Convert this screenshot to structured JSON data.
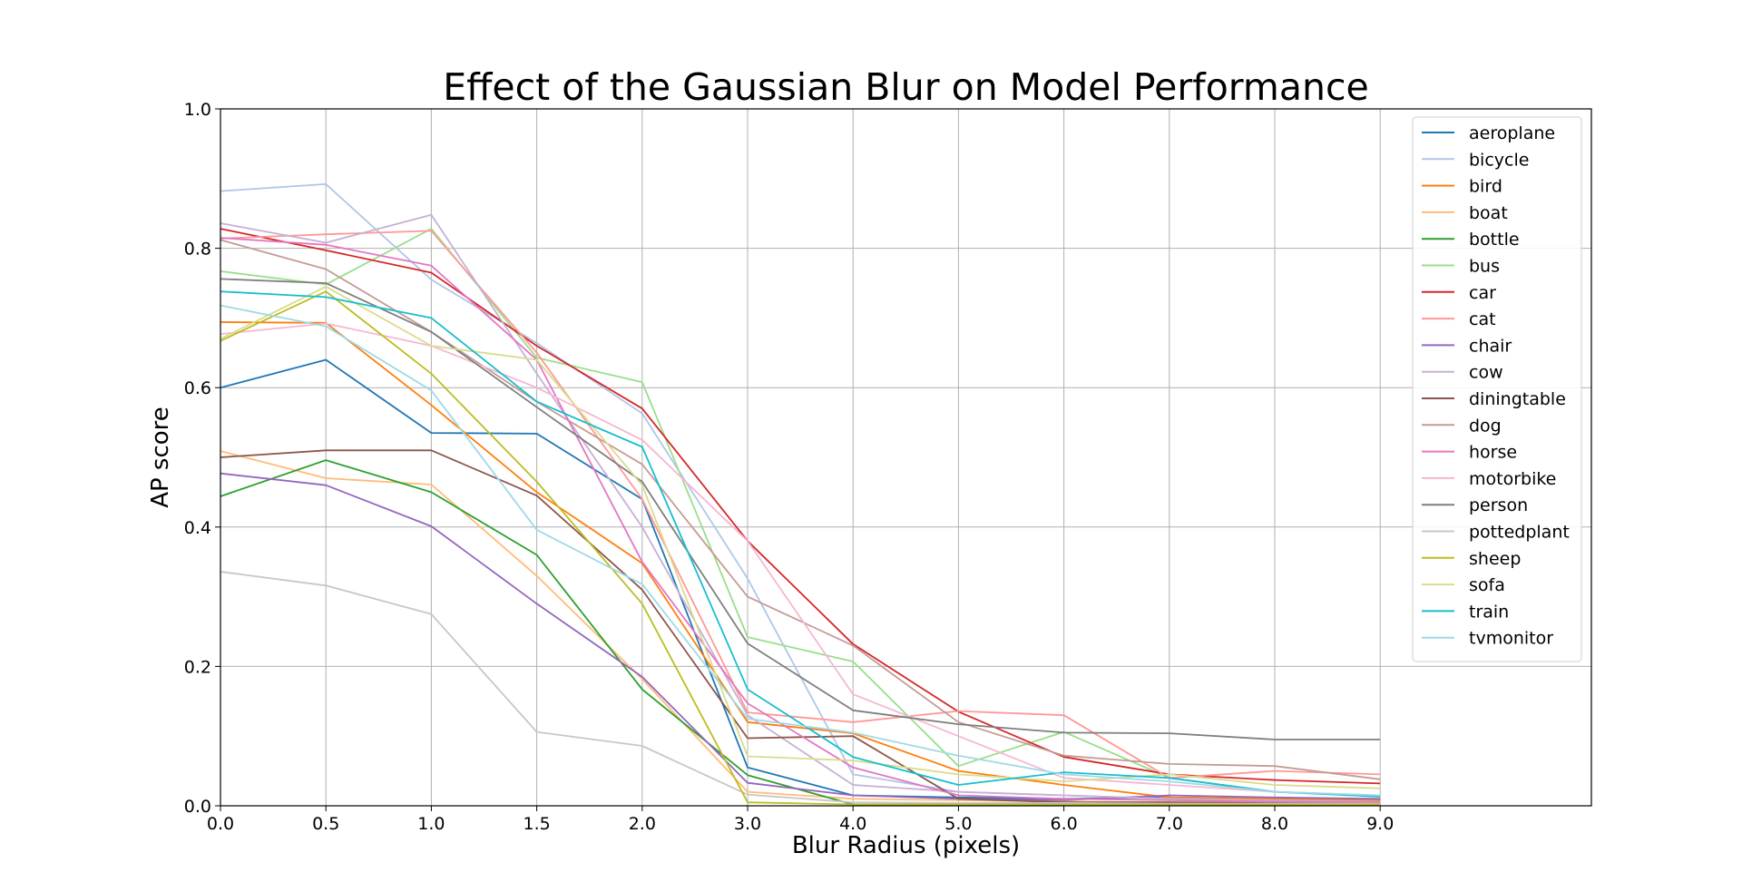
{
  "chart_data": {
    "type": "line",
    "title": "Effect of the Gaussian Blur on Model Performance",
    "xlabel": "Blur Radius (pixels)",
    "ylabel": "AP score",
    "x": [
      "0.0",
      "0.5",
      "1.0",
      "1.5",
      "2.0",
      "3.0",
      "4.0",
      "5.0",
      "6.0",
      "7.0",
      "8.0",
      "9.0"
    ],
    "yticks": [
      "0.0",
      "0.2",
      "0.4",
      "0.6",
      "0.8",
      "1.0"
    ],
    "ylim": [
      0,
      1
    ],
    "grid": true,
    "legend_position": "top-right",
    "series": [
      {
        "name": "aeroplane",
        "color": "#1f77b4",
        "values": [
          0.6,
          0.64,
          0.535,
          0.534,
          0.44,
          0.055,
          0.015,
          0.012,
          0.01,
          0.012,
          0.01,
          0.008
        ]
      },
      {
        "name": "bicycle",
        "color": "#aec7e8",
        "values": [
          0.882,
          0.892,
          0.755,
          0.664,
          0.563,
          0.326,
          0.045,
          0.02,
          0.015,
          0.01,
          0.008,
          0.006
        ]
      },
      {
        "name": "bird",
        "color": "#ff7f0e",
        "values": [
          0.694,
          0.693,
          0.575,
          0.45,
          0.348,
          0.12,
          0.104,
          0.05,
          0.03,
          0.012,
          0.01,
          0.008
        ]
      },
      {
        "name": "boat",
        "color": "#ffbb78",
        "values": [
          0.509,
          0.47,
          0.461,
          0.33,
          0.182,
          0.02,
          0.01,
          0.008,
          0.006,
          0.005,
          0.005,
          0.004
        ]
      },
      {
        "name": "bottle",
        "color": "#2ca02c",
        "values": [
          0.444,
          0.496,
          0.45,
          0.36,
          0.167,
          0.044,
          0.002,
          0.002,
          0.002,
          0.002,
          0.002,
          0.002
        ]
      },
      {
        "name": "bus",
        "color": "#98df8a",
        "values": [
          0.767,
          0.748,
          0.828,
          0.643,
          0.608,
          0.242,
          0.207,
          0.057,
          0.106,
          0.04,
          0.02,
          0.015
        ]
      },
      {
        "name": "car",
        "color": "#d62728",
        "values": [
          0.828,
          0.797,
          0.765,
          0.66,
          0.57,
          0.38,
          0.232,
          0.135,
          0.07,
          0.045,
          0.037,
          0.032
        ]
      },
      {
        "name": "cat",
        "color": "#ff9896",
        "values": [
          0.814,
          0.82,
          0.825,
          0.65,
          0.44,
          0.134,
          0.12,
          0.136,
          0.13,
          0.04,
          0.05,
          0.045
        ]
      },
      {
        "name": "chair",
        "color": "#9467bd",
        "values": [
          0.477,
          0.46,
          0.401,
          0.29,
          0.185,
          0.033,
          0.015,
          0.01,
          0.008,
          0.015,
          0.012,
          0.01
        ]
      },
      {
        "name": "cow",
        "color": "#c5b0d5",
        "values": [
          0.836,
          0.808,
          0.848,
          0.62,
          0.4,
          0.13,
          0.03,
          0.02,
          0.015,
          0.01,
          0.008,
          0.006
        ]
      },
      {
        "name": "diningtable",
        "color": "#8c564b",
        "values": [
          0.5,
          0.51,
          0.51,
          0.445,
          0.31,
          0.097,
          0.1,
          0.01,
          0.005,
          0.005,
          0.004,
          0.004
        ]
      },
      {
        "name": "dog",
        "color": "#c49c94",
        "values": [
          0.812,
          0.77,
          0.68,
          0.58,
          0.49,
          0.3,
          0.23,
          0.12,
          0.072,
          0.06,
          0.057,
          0.038
        ]
      },
      {
        "name": "horse",
        "color": "#e377c2",
        "values": [
          0.815,
          0.805,
          0.775,
          0.64,
          0.35,
          0.147,
          0.055,
          0.015,
          0.01,
          0.008,
          0.006,
          0.005
        ]
      },
      {
        "name": "motorbike",
        "color": "#f7b6d2",
        "values": [
          0.677,
          0.692,
          0.66,
          0.6,
          0.525,
          0.38,
          0.16,
          0.1,
          0.04,
          0.03,
          0.02,
          0.015
        ]
      },
      {
        "name": "person",
        "color": "#7f7f7f",
        "values": [
          0.756,
          0.75,
          0.68,
          0.572,
          0.465,
          0.233,
          0.137,
          0.117,
          0.105,
          0.104,
          0.095,
          0.095
        ]
      },
      {
        "name": "pottedplant",
        "color": "#c7c7c7",
        "values": [
          0.336,
          0.316,
          0.275,
          0.106,
          0.086,
          0.016,
          0.005,
          0.004,
          0.004,
          0.003,
          0.003,
          0.003
        ]
      },
      {
        "name": "sheep",
        "color": "#bcbd22",
        "values": [
          0.667,
          0.738,
          0.62,
          0.465,
          0.29,
          0.005,
          0.002,
          0.002,
          0.002,
          0.002,
          0.002,
          0.002
        ]
      },
      {
        "name": "sofa",
        "color": "#dbdb8d",
        "values": [
          0.67,
          0.745,
          0.66,
          0.64,
          0.46,
          0.071,
          0.065,
          0.045,
          0.035,
          0.045,
          0.03,
          0.025
        ]
      },
      {
        "name": "train",
        "color": "#17becf",
        "values": [
          0.738,
          0.73,
          0.7,
          0.58,
          0.515,
          0.167,
          0.07,
          0.03,
          0.048,
          0.04,
          0.02,
          0.013
        ]
      },
      {
        "name": "tvmonitor",
        "color": "#9edae5",
        "values": [
          0.718,
          0.688,
          0.596,
          0.396,
          0.318,
          0.125,
          0.105,
          0.072,
          0.045,
          0.035,
          0.02,
          0.015
        ]
      }
    ]
  }
}
